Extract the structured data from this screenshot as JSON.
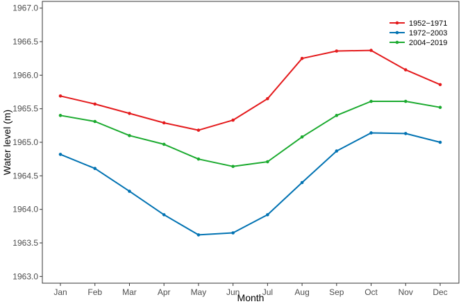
{
  "chart_data": {
    "type": "line",
    "xlabel": "Month",
    "ylabel": "Water level (m)",
    "categories": [
      "Jan",
      "Feb",
      "Mar",
      "Apr",
      "May",
      "Jun",
      "Jul",
      "Aug",
      "Sep",
      "Oct",
      "Nov",
      "Dec"
    ],
    "ylim": [
      1962.9,
      1967.1
    ],
    "yticks": [
      "1963.0",
      "1963.5",
      "1964.0",
      "1964.5",
      "1965.0",
      "1965.5",
      "1966.0",
      "1966.5",
      "1967.0"
    ],
    "grid": false,
    "legend_position": "top-right",
    "series": [
      {
        "name": "1952−1971",
        "color": "#e41a1c",
        "values": [
          1965.69,
          1965.57,
          1965.43,
          1965.29,
          1965.18,
          1965.33,
          1965.65,
          1966.25,
          1966.36,
          1966.37,
          1966.08,
          1965.86
        ]
      },
      {
        "name": "1972−2003",
        "color": "#0072b2",
        "values": [
          1964.82,
          1964.61,
          1964.27,
          1963.92,
          1963.62,
          1963.65,
          1963.92,
          1964.4,
          1964.87,
          1965.14,
          1965.13,
          1965.0
        ]
      },
      {
        "name": "2004−2019",
        "color": "#1aaa2e",
        "values": [
          1965.4,
          1965.31,
          1965.1,
          1964.97,
          1964.75,
          1964.64,
          1964.71,
          1965.08,
          1965.4,
          1965.61,
          1965.61,
          1965.52
        ]
      }
    ]
  }
}
